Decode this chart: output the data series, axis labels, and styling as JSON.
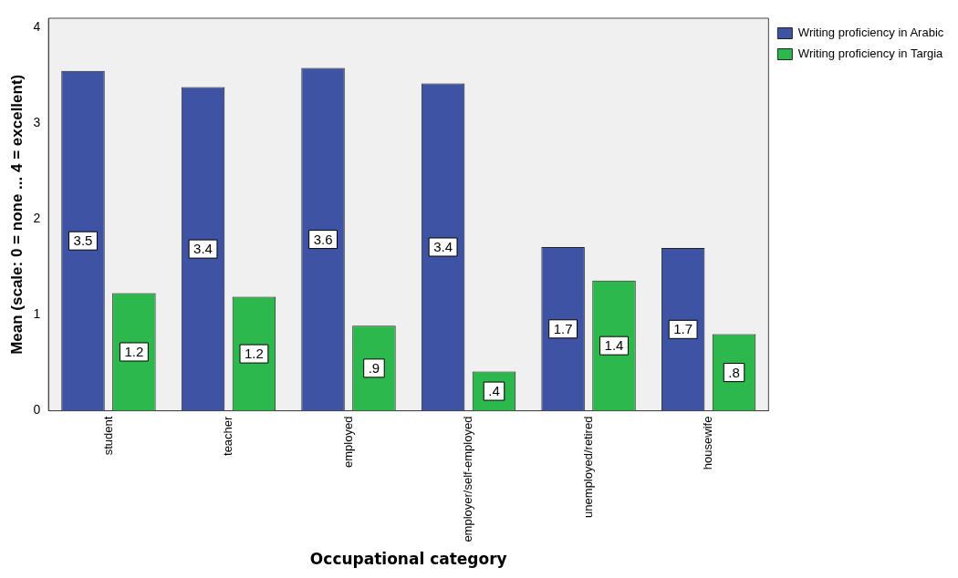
{
  "chart_data": {
    "type": "bar",
    "xlabel": "Occupational category",
    "ylabel": "Mean (scale: 0 = none ... 4 = excellent)",
    "categories": [
      "student",
      "teacher",
      "employed",
      "employer/self-employed",
      "unemployed/retired",
      "housewife"
    ],
    "series": [
      {
        "name": "Writing proficiency in Arabic",
        "color": "#3e53a4",
        "values": [
          3.55,
          3.38,
          3.58,
          3.42,
          1.71,
          1.7
        ],
        "value_labels": [
          "3.5",
          "3.4",
          "3.6",
          "3.4",
          "1.7",
          "1.7"
        ]
      },
      {
        "name": "Writing proficiency in Targia",
        "color": "#2db84d",
        "values": [
          1.23,
          1.19,
          0.89,
          0.41,
          1.36,
          0.8
        ],
        "value_labels": [
          "1.2",
          "1.2",
          ".9",
          ".4",
          "1.4",
          ".8"
        ]
      }
    ],
    "ylim": [
      0,
      4.1
    ],
    "yticks": [
      0,
      1,
      2,
      3,
      4
    ],
    "grid": false,
    "legend": "top right"
  }
}
